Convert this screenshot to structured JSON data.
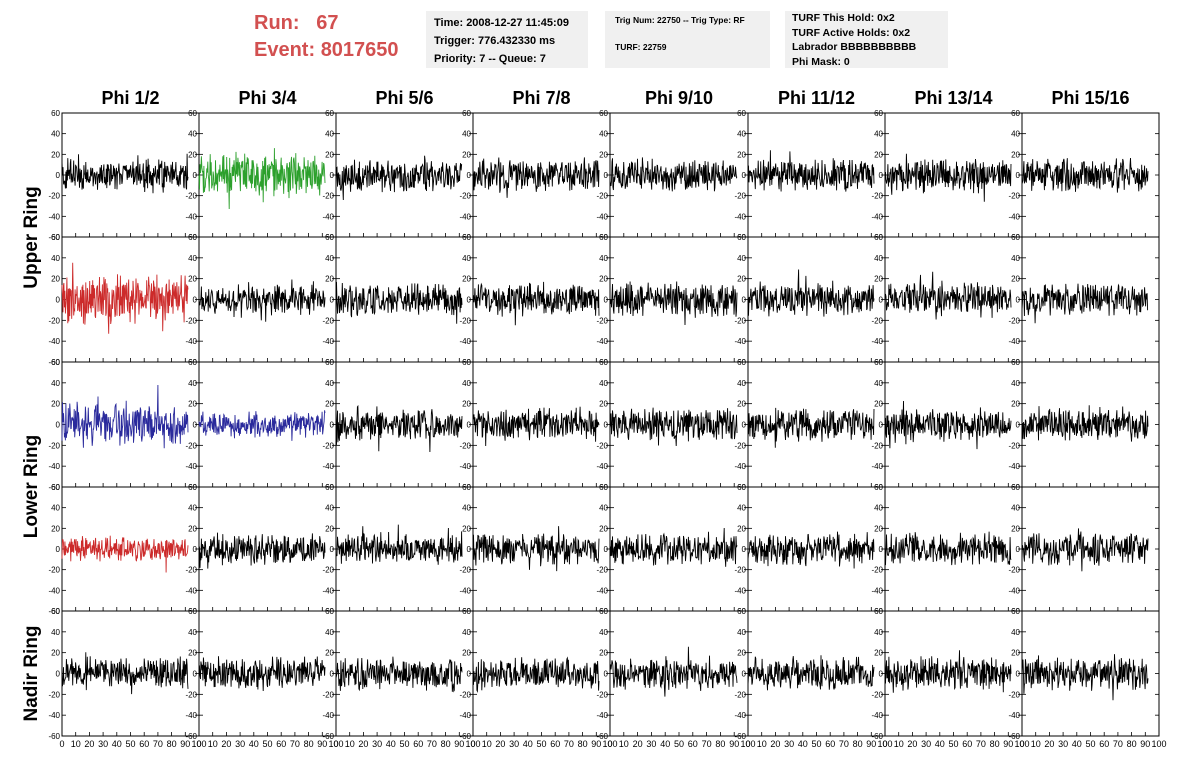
{
  "header": {
    "run_label": "Run:",
    "run_value": "67",
    "event_label": "Event:",
    "event_value": "8017650"
  },
  "info_time": {
    "time": "Time: 2008-12-27 11:45:09",
    "trigger": "Trigger: 776.432330 ms",
    "priority": "Priority: 7 -- Queue: 7"
  },
  "info_trig": {
    "trig": "Trig Num: 22750 -- Trig Type: RF",
    "turf": "TURF: 22759"
  },
  "info_turf": {
    "this_hold": "TURF This Hold: 0x2",
    "active_holds": "TURF Active Holds: 0x2",
    "labrador": "Labrador BBBBBBBBBB",
    "phi_mask": "Phi Mask: 0"
  },
  "chart_data": {
    "type": "line",
    "columns": [
      "Phi 1/2",
      "Phi 3/4",
      "Phi 5/6",
      "Phi 7/8",
      "Phi 9/10",
      "Phi 11/12",
      "Phi 13/14",
      "Phi 15/16"
    ],
    "ring_labels": [
      {
        "text": "Upper Ring",
        "spans_rows": [
          0,
          1
        ]
      },
      {
        "text": "Lower Ring",
        "spans_rows": [
          2,
          3
        ]
      },
      {
        "text": "Nadir Ring",
        "spans_rows": [
          4,
          4
        ]
      }
    ],
    "rows": 5,
    "ylim": [
      -60,
      60
    ],
    "yticks": [
      -60,
      -40,
      -20,
      0,
      20,
      40,
      60
    ],
    "xlim": [
      0,
      100
    ],
    "xticks": [
      0,
      10,
      20,
      30,
      40,
      50,
      60,
      70,
      80,
      90,
      100
    ],
    "samples": 260,
    "trace_x_extent": 92,
    "default_color": "#000000",
    "highlighted_panels": [
      {
        "row": 0,
        "col": 1,
        "color": "#2ca02c",
        "amplitude": 24
      },
      {
        "row": 1,
        "col": 0,
        "color": "#cc2a2a",
        "amplitude": 28
      },
      {
        "row": 2,
        "col": 0,
        "color": "#2a2a9c",
        "amplitude": 24
      },
      {
        "row": 2,
        "col": 1,
        "color": "#2a2a9c",
        "amplitude": 14
      },
      {
        "row": 3,
        "col": 0,
        "color": "#cc2a2a",
        "amplitude": 14
      }
    ],
    "default_amplitude": 18
  }
}
